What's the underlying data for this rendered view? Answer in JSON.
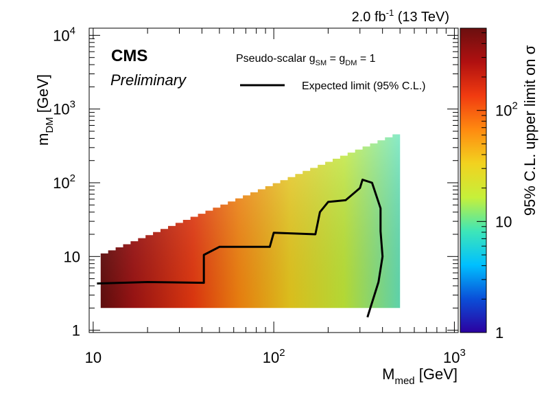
{
  "header": {
    "lumi_value": "2.0 fb",
    "lumi_exponent": "-1",
    "energy": " (13 TeV)"
  },
  "labels": {
    "experiment": "CMS",
    "status": "Preliminary",
    "model_prefix": "Pseudo-scalar g",
    "model_sub_sm": "SM",
    "model_eq": " = g",
    "model_sub_dm": "DM",
    "model_suffix": " = 1",
    "legend_line": "Expected limit (95% C.L.)"
  },
  "colors": {
    "line": "#000000",
    "palette": [
      "#2c00a0",
      "#0a4fd8",
      "#00c0ff",
      "#3ee6b8",
      "#c6f03a",
      "#f2d21f",
      "#ff8a10",
      "#f13b10",
      "#b01010",
      "#6b0f0f"
    ]
  },
  "chart_data": {
    "type": "heatmap",
    "title": "",
    "xlabel": "M",
    "xlabel_sub": "med",
    "xlabel_unit": " [GeV]",
    "ylabel": "m",
    "ylabel_sub": "DM",
    "ylabel_unit": " [GeV]",
    "zlabel": "95% C.L. upper limit on σ",
    "x_scale": "log",
    "y_scale": "log",
    "z_scale": "log",
    "xlim": [
      9.5,
      1050
    ],
    "ylim": [
      0.93,
      12500
    ],
    "zlim": [
      1,
      550
    ],
    "x_ticks": [
      {
        "value": 10,
        "label": "10",
        "exp": ""
      },
      {
        "value": 100,
        "label": "10",
        "exp": "2"
      },
      {
        "value": 1000,
        "label": "10",
        "exp": "3"
      }
    ],
    "y_ticks": [
      {
        "value": 1,
        "label": "1",
        "exp": ""
      },
      {
        "value": 10,
        "label": "10",
        "exp": ""
      },
      {
        "value": 100,
        "label": "10",
        "exp": "2"
      },
      {
        "value": 1000,
        "label": "10",
        "exp": "3"
      },
      {
        "value": 10000,
        "label": "10",
        "exp": "4"
      }
    ],
    "z_ticks": [
      {
        "value": 1,
        "label": "1",
        "exp": ""
      },
      {
        "value": 10,
        "label": "10",
        "exp": ""
      },
      {
        "value": 100,
        "label": "10",
        "exp": "2"
      }
    ],
    "region": {
      "x_min": 11,
      "x_max": 500,
      "y_min": 2,
      "y_upper_at_x_min": 11,
      "y_upper_at_x_max": 500
    },
    "z_approx": [
      {
        "x": 11,
        "z": 450
      },
      {
        "x": 20,
        "z": 380
      },
      {
        "x": 40,
        "z": 300
      },
      {
        "x": 50,
        "z": 230
      },
      {
        "x": 80,
        "z": 190
      },
      {
        "x": 100,
        "z": 150
      },
      {
        "x": 150,
        "z": 120
      },
      {
        "x": 200,
        "z": 60
      },
      {
        "x": 300,
        "z": 40
      },
      {
        "x": 500,
        "z": 25
      }
    ],
    "series": [
      {
        "name": "Expected limit (95% C.L.)",
        "points": [
          [
            10.5,
            4.3
          ],
          [
            20,
            4.5
          ],
          [
            41,
            4.4
          ],
          [
            41,
            10.5
          ],
          [
            50,
            13.5
          ],
          [
            95,
            13.5
          ],
          [
            100,
            21
          ],
          [
            170,
            20
          ],
          [
            180,
            40
          ],
          [
            200,
            55
          ],
          [
            250,
            58
          ],
          [
            300,
            85
          ],
          [
            310,
            110
          ],
          [
            350,
            100
          ],
          [
            390,
            45
          ],
          [
            390,
            22
          ],
          [
            400,
            10
          ],
          [
            380,
            4.5
          ],
          [
            330,
            1.5
          ]
        ]
      }
    ]
  }
}
